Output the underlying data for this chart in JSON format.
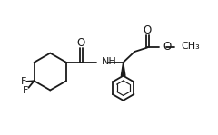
{
  "bg_color": "#ffffff",
  "line_color": "#1a1a1a",
  "lw": 1.3,
  "fs": 7.5,
  "xlim": [
    0,
    10
  ],
  "ylim": [
    0,
    6.5
  ],
  "figsize": [
    2.4,
    1.49
  ],
  "dpi": 100
}
